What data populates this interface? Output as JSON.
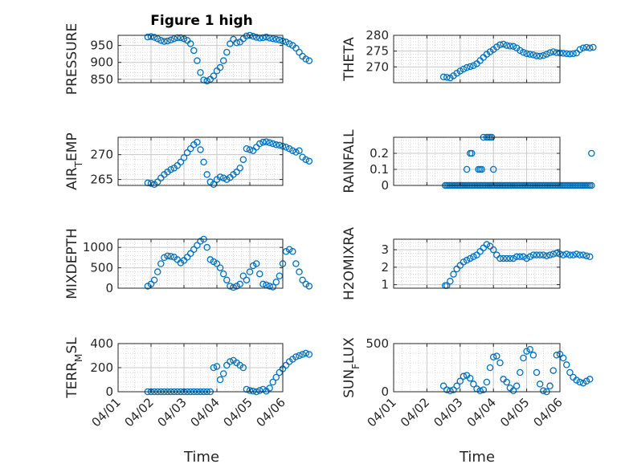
{
  "title": "Figure 1 high",
  "xlabel": "Time",
  "xticks": [
    "04/01",
    "04/02",
    "04/03",
    "04/04",
    "04/05",
    "04/06"
  ],
  "marker_color": "#0072BD",
  "chart_data": [
    {
      "type": "scatter",
      "ylabel": "PRESSURE",
      "ylim": [
        840,
        980
      ],
      "yticks": [
        850,
        900,
        950
      ],
      "x": [
        0.9,
        1.0,
        1.1,
        1.2,
        1.3,
        1.4,
        1.5,
        1.6,
        1.7,
        1.8,
        1.9,
        2.0,
        2.1,
        2.2,
        2.3,
        2.4,
        2.5,
        2.6,
        2.7,
        2.8,
        2.9,
        3.0,
        3.1,
        3.2,
        3.3,
        3.4,
        3.5,
        3.6,
        3.7,
        3.8,
        3.9,
        4.0,
        4.1,
        4.2,
        4.3,
        4.4,
        4.5,
        4.6,
        4.7,
        4.8,
        4.9,
        5.0,
        5.1,
        5.2,
        5.3,
        5.4,
        5.5,
        5.6,
        5.7,
        5.8
      ],
      "y": [
        975,
        976,
        974,
        970,
        965,
        962,
        963,
        966,
        970,
        973,
        973,
        970,
        965,
        955,
        935,
        905,
        870,
        848,
        845,
        850,
        860,
        875,
        885,
        905,
        930,
        955,
        968,
        958,
        960,
        970,
        978,
        980,
        977,
        974,
        972,
        973,
        975,
        972,
        970,
        968,
        966,
        963,
        960,
        955,
        950,
        942,
        930,
        918,
        910,
        905
      ]
    },
    {
      "type": "scatter",
      "ylabel": "THETA",
      "ylim": [
        265,
        280
      ],
      "yticks": [
        270,
        275,
        280
      ],
      "x": [
        1.5,
        1.6,
        1.7,
        1.8,
        1.9,
        2.0,
        2.1,
        2.2,
        2.3,
        2.4,
        2.5,
        2.6,
        2.7,
        2.8,
        2.9,
        3.0,
        3.1,
        3.2,
        3.3,
        3.4,
        3.5,
        3.6,
        3.7,
        3.8,
        3.9,
        4.0,
        4.1,
        4.2,
        4.3,
        4.4,
        4.5,
        4.6,
        4.7,
        4.8,
        4.9,
        5.0,
        5.1,
        5.2,
        5.3,
        5.4,
        5.5,
        5.6,
        5.7,
        5.8,
        5.9,
        6.0
      ],
      "y": [
        266.8,
        266.7,
        266.5,
        267.2,
        268.0,
        268.7,
        269.3,
        269.8,
        270.1,
        270.4,
        271.0,
        272.0,
        273.0,
        274.0,
        274.8,
        275.5,
        276.3,
        277.0,
        277.2,
        276.8,
        276.6,
        276.5,
        276.0,
        275.2,
        274.6,
        274.2,
        274.0,
        273.8,
        273.5,
        273.4,
        273.6,
        274.0,
        274.5,
        274.8,
        274.5,
        274.4,
        274.3,
        274.2,
        274.1,
        274.2,
        274.4,
        275.5,
        276.0,
        276.2,
        276.0,
        276.2
      ]
    },
    {
      "type": "scatter",
      "ylabel": "AIR_TEMP",
      "ylim": [
        263.8,
        273.5
      ],
      "yticks": [
        265,
        270
      ],
      "x": [
        0.9,
        1.0,
        1.1,
        1.2,
        1.3,
        1.4,
        1.5,
        1.6,
        1.7,
        1.8,
        1.9,
        2.0,
        2.1,
        2.2,
        2.3,
        2.4,
        2.5,
        2.6,
        2.7,
        2.8,
        2.9,
        3.0,
        3.1,
        3.2,
        3.3,
        3.4,
        3.5,
        3.6,
        3.7,
        3.8,
        3.9,
        4.0,
        4.1,
        4.2,
        4.3,
        4.4,
        4.5,
        4.6,
        4.7,
        4.8,
        4.9,
        5.0,
        5.1,
        5.2,
        5.3,
        5.4,
        5.5,
        5.6,
        5.7,
        5.8
      ],
      "y": [
        264.3,
        264.2,
        264.0,
        264.5,
        265.3,
        266.0,
        266.5,
        267.0,
        267.3,
        267.8,
        268.5,
        269.4,
        270.4,
        271.2,
        272.0,
        272.5,
        271.0,
        268.5,
        266.0,
        264.5,
        264.0,
        265.0,
        265.5,
        265.3,
        265.0,
        265.4,
        266.0,
        266.5,
        267.3,
        269.0,
        271.2,
        271.0,
        270.8,
        271.5,
        272.2,
        272.5,
        272.6,
        272.4,
        272.2,
        272.0,
        271.9,
        271.7,
        271.5,
        271.2,
        270.8,
        270.5,
        270.8,
        269.5,
        269.0,
        268.7
      ]
    },
    {
      "type": "scatter",
      "ylabel": "RAINFALL",
      "ylim": [
        0,
        0.3
      ],
      "yticks": [
        0,
        0.1,
        0.2
      ],
      "x": [
        1.55,
        1.6,
        1.65,
        1.7,
        1.75,
        1.8,
        1.85,
        1.9,
        1.95,
        2.0,
        2.05,
        2.1,
        2.15,
        2.2,
        2.25,
        2.3,
        2.35,
        2.4,
        2.45,
        2.5,
        2.55,
        2.6,
        2.65,
        2.7,
        2.75,
        2.8,
        2.85,
        2.9,
        2.95,
        3.0,
        3.05,
        3.1,
        3.15,
        3.2,
        3.25,
        3.3,
        3.35,
        3.4,
        3.45,
        3.5,
        3.55,
        3.6,
        3.65,
        3.7,
        3.75,
        3.8,
        3.85,
        3.9,
        3.95,
        4.0,
        4.05,
        4.1,
        4.15,
        4.2,
        4.25,
        4.3,
        4.35,
        4.4,
        4.45,
        4.5,
        4.55,
        4.6,
        4.65,
        4.7,
        4.75,
        4.8,
        4.85,
        4.9,
        4.95,
        5.0,
        5.05,
        5.1,
        5.15,
        5.2,
        5.25,
        5.3,
        5.35,
        5.4,
        5.45,
        5.5,
        5.55,
        5.6,
        5.65,
        5.7,
        5.75,
        5.8,
        5.85,
        5.9,
        5.95,
        2.2,
        2.3,
        2.35,
        2.55,
        2.6,
        2.65,
        2.7,
        2.8,
        2.85,
        2.9,
        2.95,
        3.0,
        5.95
      ],
      "y": [
        0,
        0,
        0,
        0,
        0,
        0,
        0,
        0,
        0,
        0,
        0,
        0,
        0,
        0,
        0,
        0,
        0,
        0,
        0,
        0,
        0,
        0,
        0,
        0,
        0,
        0,
        0,
        0,
        0,
        0,
        0,
        0,
        0,
        0,
        0,
        0,
        0,
        0,
        0,
        0,
        0,
        0,
        0,
        0,
        0,
        0,
        0,
        0,
        0,
        0,
        0,
        0,
        0,
        0,
        0,
        0,
        0,
        0,
        0,
        0,
        0,
        0,
        0,
        0,
        0,
        0,
        0,
        0,
        0,
        0,
        0,
        0,
        0,
        0,
        0,
        0,
        0,
        0,
        0,
        0,
        0,
        0,
        0,
        0,
        0,
        0,
        0,
        0,
        0,
        0.1,
        0.2,
        0.2,
        0.1,
        0.1,
        0.1,
        0.3,
        0.3,
        0.3,
        0.3,
        0.3,
        0.1,
        0.2
      ]
    },
    {
      "type": "scatter",
      "ylabel": "MIXDEPTH",
      "ylim": [
        0,
        1200
      ],
      "yticks": [
        0,
        500,
        1000
      ],
      "x": [
        0.9,
        1.0,
        1.1,
        1.2,
        1.3,
        1.4,
        1.5,
        1.6,
        1.7,
        1.8,
        1.9,
        2.0,
        2.1,
        2.2,
        2.3,
        2.4,
        2.5,
        2.6,
        2.7,
        2.8,
        2.9,
        3.0,
        3.1,
        3.2,
        3.3,
        3.4,
        3.5,
        3.6,
        3.7,
        3.8,
        3.9,
        4.0,
        4.1,
        4.2,
        4.3,
        4.4,
        4.5,
        4.6,
        4.7,
        4.8,
        4.9,
        5.0,
        5.1,
        5.2,
        5.3,
        5.4,
        5.5,
        5.6,
        5.7,
        5.8
      ],
      "y": [
        50,
        100,
        200,
        400,
        600,
        750,
        790,
        780,
        760,
        700,
        620,
        680,
        760,
        850,
        950,
        1050,
        1150,
        1200,
        1000,
        700,
        650,
        600,
        500,
        350,
        200,
        50,
        20,
        50,
        100,
        300,
        200,
        400,
        550,
        600,
        350,
        100,
        80,
        50,
        30,
        150,
        300,
        600,
        900,
        950,
        900,
        600,
        400,
        200,
        100,
        50
      ]
    },
    {
      "type": "scatter",
      "ylabel": "H2OMIXRA",
      "ylim": [
        0.8,
        3.6
      ],
      "yticks": [
        1,
        2,
        3
      ],
      "x": [
        1.55,
        1.6,
        1.7,
        1.8,
        1.9,
        2.0,
        2.1,
        2.2,
        2.3,
        2.4,
        2.5,
        2.6,
        2.7,
        2.8,
        2.9,
        3.0,
        3.1,
        3.2,
        3.3,
        3.4,
        3.5,
        3.6,
        3.7,
        3.8,
        3.9,
        4.0,
        4.1,
        4.2,
        4.3,
        4.4,
        4.5,
        4.6,
        4.7,
        4.8,
        4.9,
        5.0,
        5.1,
        5.2,
        5.3,
        5.4,
        5.5,
        5.6,
        5.7,
        5.8,
        5.9
      ],
      "y": [
        0.95,
        0.95,
        1.2,
        1.6,
        1.9,
        2.1,
        2.3,
        2.4,
        2.5,
        2.6,
        2.7,
        2.9,
        3.1,
        3.3,
        3.2,
        3.0,
        2.7,
        2.5,
        2.5,
        2.5,
        2.5,
        2.5,
        2.6,
        2.6,
        2.6,
        2.5,
        2.6,
        2.7,
        2.7,
        2.7,
        2.7,
        2.65,
        2.7,
        2.75,
        2.8,
        2.75,
        2.7,
        2.75,
        2.7,
        2.7,
        2.75,
        2.7,
        2.7,
        2.65,
        2.6
      ]
    },
    {
      "type": "scatter",
      "ylabel": "TERR_MSL",
      "ylim": [
        0,
        400
      ],
      "yticks": [
        0,
        200,
        400
      ],
      "x": [
        0.9,
        1.0,
        1.1,
        1.2,
        1.3,
        1.4,
        1.5,
        1.6,
        1.7,
        1.8,
        1.9,
        2.0,
        2.1,
        2.2,
        2.3,
        2.4,
        2.5,
        2.6,
        2.7,
        2.8,
        2.9,
        3.0,
        3.1,
        3.2,
        3.3,
        3.4,
        3.5,
        3.6,
        3.7,
        3.8,
        3.9,
        4.0,
        4.1,
        4.2,
        4.3,
        4.4,
        4.5,
        4.6,
        4.7,
        4.8,
        4.9,
        5.0,
        5.1,
        5.2,
        5.3,
        5.4,
        5.5,
        5.6,
        5.7,
        5.8
      ],
      "y": [
        0,
        0,
        0,
        0,
        0,
        0,
        0,
        0,
        0,
        0,
        0,
        0,
        0,
        0,
        0,
        0,
        0,
        0,
        0,
        0,
        200,
        210,
        100,
        150,
        220,
        250,
        260,
        240,
        220,
        200,
        20,
        10,
        5,
        0,
        10,
        20,
        5,
        30,
        80,
        120,
        160,
        190,
        220,
        250,
        270,
        290,
        300,
        310,
        320,
        310
      ]
    },
    {
      "type": "scatter",
      "ylabel": "SUN_FLUX",
      "ylim": [
        0,
        500
      ],
      "yticks": [
        0,
        500
      ],
      "x": [
        1.5,
        1.6,
        1.7,
        1.8,
        1.9,
        2.0,
        2.1,
        2.2,
        2.3,
        2.4,
        2.5,
        2.6,
        2.7,
        2.8,
        2.9,
        3.0,
        3.1,
        3.2,
        3.3,
        3.4,
        3.5,
        3.6,
        3.7,
        3.8,
        3.9,
        4.0,
        4.1,
        4.2,
        4.3,
        4.4,
        4.5,
        4.6,
        4.7,
        4.8,
        4.9,
        5.0,
        5.1,
        5.2,
        5.3,
        5.4,
        5.5,
        5.6,
        5.7,
        5.8,
        5.9
      ],
      "y": [
        60,
        20,
        10,
        20,
        60,
        110,
        160,
        170,
        140,
        80,
        30,
        10,
        20,
        100,
        250,
        360,
        370,
        300,
        130,
        100,
        40,
        10,
        60,
        200,
        350,
        420,
        440,
        380,
        200,
        80,
        10,
        0,
        60,
        220,
        380,
        390,
        350,
        280,
        200,
        150,
        120,
        100,
        90,
        110,
        130
      ]
    }
  ]
}
